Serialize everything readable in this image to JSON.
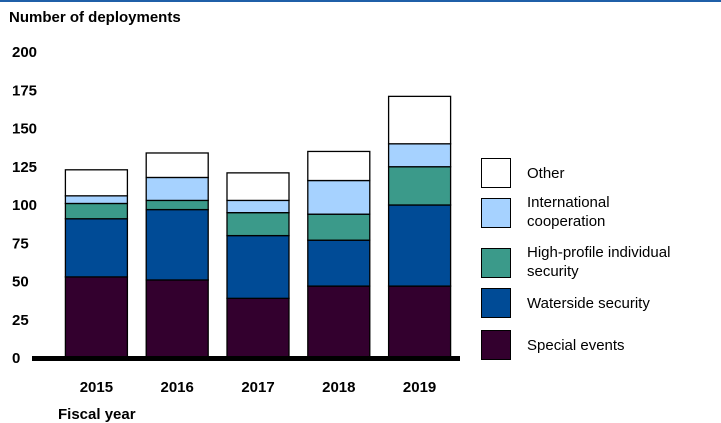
{
  "chart_data": {
    "type": "bar",
    "stacked": true,
    "ylabel": "Number of deployments",
    "xlabel": "Fiscal year",
    "categories": [
      "2015",
      "2016",
      "2017",
      "2018",
      "2019"
    ],
    "ylim": [
      0,
      200
    ],
    "yticks": [
      "0",
      "25",
      "50",
      "75",
      "100",
      "125",
      "150",
      "175",
      "200"
    ],
    "grid": false,
    "legend_position": "right",
    "series": [
      {
        "name": "Special events",
        "color": "#33002e",
        "values": [
          53,
          51,
          39,
          47,
          47
        ]
      },
      {
        "name": "Waterside security",
        "color": "#004b96",
        "values": [
          38,
          46,
          41,
          30,
          53
        ]
      },
      {
        "name": "High-profile individual security",
        "color": "#3b9a8a",
        "values": [
          10,
          6,
          15,
          17,
          25
        ]
      },
      {
        "name": "International cooperation",
        "color": "#a6d2ff",
        "values": [
          5,
          15,
          8,
          22,
          15
        ]
      },
      {
        "name": "Other",
        "color": "#ffffff",
        "values": [
          17,
          16,
          18,
          19,
          31
        ]
      }
    ]
  },
  "legend": [
    {
      "lines": [
        "Other"
      ]
    },
    {
      "lines": [
        "International",
        "cooperation"
      ]
    },
    {
      "lines": [
        "High-profile individual",
        "security"
      ]
    },
    {
      "lines": [
        "Waterside security"
      ]
    },
    {
      "lines": [
        "Special events"
      ]
    }
  ]
}
